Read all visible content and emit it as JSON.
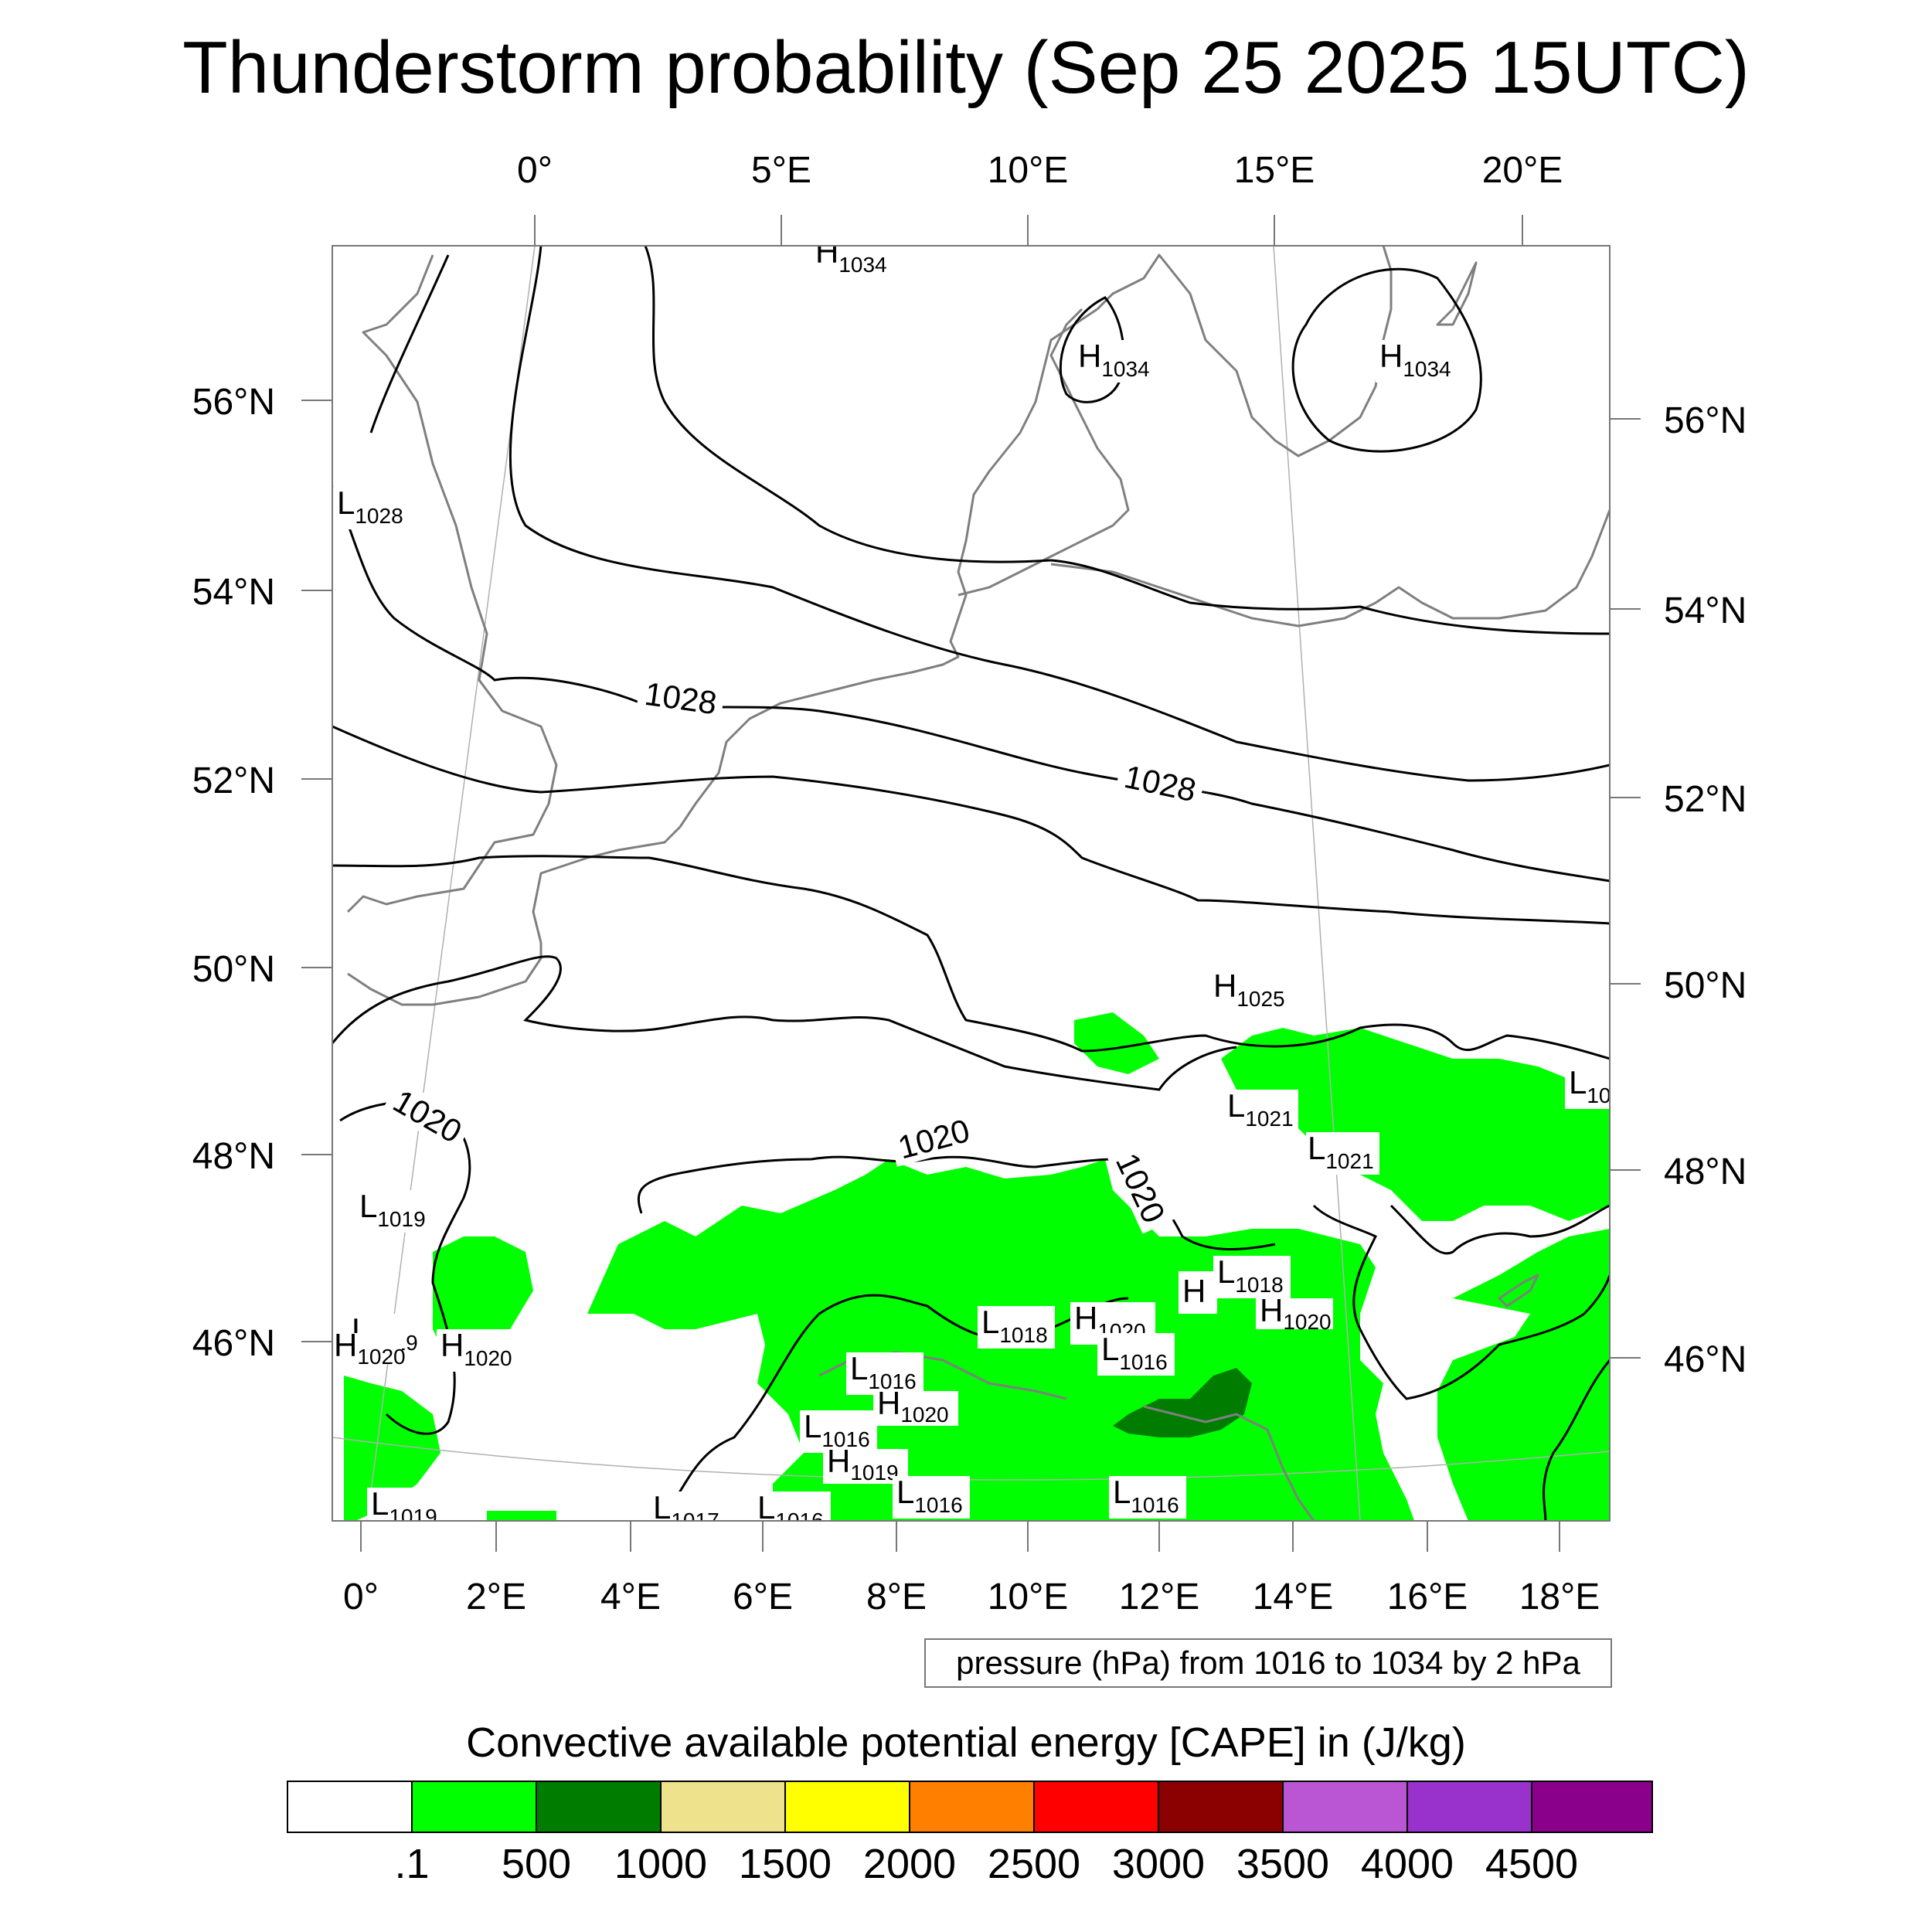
{
  "title": "Thunderstorm probability (Sep 25 2025 15UTC)",
  "top_lon_labels": [
    "0°",
    "5°E",
    "10°E",
    "15°E",
    "20°E"
  ],
  "bottom_lon_labels": [
    "0°",
    "2°E",
    "4°E",
    "6°E",
    "8°E",
    "10°E",
    "12°E",
    "14°E",
    "16°E",
    "18°E"
  ],
  "left_lat_labels": [
    "56°N",
    "54°N",
    "52°N",
    "50°N",
    "48°N",
    "46°N"
  ],
  "right_lat_labels": [
    "56°N",
    "54°N",
    "52°N",
    "50°N",
    "48°N",
    "46°N"
  ],
  "isobar_labels": [
    "1028",
    "1028",
    "1020",
    "1020",
    "1020"
  ],
  "pressure_centers": [
    {
      "type": "H",
      "value": "1034"
    },
    {
      "type": "H",
      "value": "1034"
    },
    {
      "type": "H",
      "value": "1034"
    },
    {
      "type": "L",
      "value": "1028"
    },
    {
      "type": "H",
      "value": "1025"
    },
    {
      "type": "L",
      "value": "1021"
    },
    {
      "type": "L",
      "value": "1021"
    },
    {
      "type": "L",
      "value": "10"
    },
    {
      "type": "L",
      "value": "1019"
    },
    {
      "type": "L",
      "value": "1019"
    },
    {
      "type": "H",
      "value": "1020"
    },
    {
      "type": "L",
      "value": "1018"
    },
    {
      "type": "H",
      "value": "1020"
    },
    {
      "type": "H",
      "value": ""
    },
    {
      "type": "L",
      "value": "1018"
    },
    {
      "type": "L",
      "value": "1016"
    },
    {
      "type": "H",
      "value": "1020"
    },
    {
      "type": "L",
      "value": "1016"
    },
    {
      "type": "H",
      "value": "1020"
    },
    {
      "type": "L",
      "value": "1016"
    },
    {
      "type": "H",
      "value": "1019"
    },
    {
      "type": "L",
      "value": "1016"
    },
    {
      "type": "L",
      "value": "1016"
    },
    {
      "type": "L",
      "value": "1019"
    },
    {
      "type": "L",
      "value": "1017"
    },
    {
      "type": "L",
      "value": "1016"
    },
    {
      "type": "H",
      "value": "1020"
    }
  ],
  "pressure_note": "pressure (hPa) from 1016 to 1034 by 2 hPa",
  "colorbar": {
    "title": "Convective available potential energy [CAPE] in (J/kg)",
    "colors": [
      "#ffffff",
      "#00ff00",
      "#007d00",
      "#eee38c",
      "#ffff00",
      "#ff8000",
      "#ff0000",
      "#8b0000",
      "#ba55d3",
      "#9932cc",
      "#8b008b"
    ],
    "tick_labels": [
      ".1",
      "500",
      "1000",
      "1500",
      "2000",
      "2500",
      "3000",
      "3500",
      "4000",
      "4500"
    ]
  },
  "colors": {
    "cape_low": "#00ff00",
    "cape_mid": "#007d00",
    "coast": "#7f7f7f",
    "isobar": "#000000"
  }
}
